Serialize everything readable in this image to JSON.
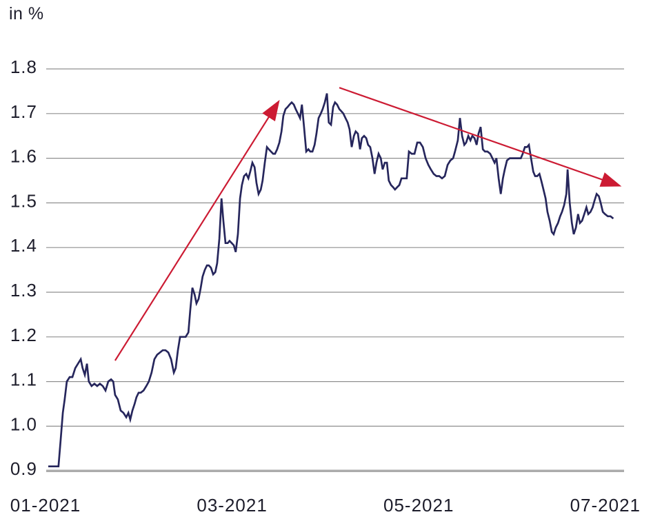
{
  "page": {
    "background": "#ffffff"
  },
  "chart_data": {
    "type": "line",
    "title": "",
    "unit_label": "in %",
    "ylabel": "in %",
    "xlabel": "",
    "ylim": [
      0.9,
      1.8
    ],
    "grid": {
      "show": true,
      "color": "#8f8f8f",
      "baseline_color": "#ababab"
    },
    "legend": {
      "show": false
    },
    "y_ticks": [
      {
        "label": "1.8",
        "value": 1.8
      },
      {
        "label": "1.7",
        "value": 1.7
      },
      {
        "label": "1.6",
        "value": 1.6
      },
      {
        "label": "1.5",
        "value": 1.5
      },
      {
        "label": "1.4",
        "value": 1.4
      },
      {
        "label": "1.3",
        "value": 1.3
      },
      {
        "label": "1.2",
        "value": 1.2
      },
      {
        "label": "1.1",
        "value": 1.1
      },
      {
        "label": "1.0",
        "value": 1.0
      },
      {
        "label": "0.9",
        "value": 0.9
      }
    ],
    "x_ticks": [
      {
        "label": "01-2021",
        "month": 1
      },
      {
        "label": "03-2021",
        "month": 3
      },
      {
        "label": "05-2021",
        "month": 5
      },
      {
        "label": "07-2021",
        "month": 7
      }
    ],
    "x_unit": "day_of_year_2021",
    "series": [
      {
        "color": "#26265c",
        "points": [
          [
            1.9,
            0.91
          ],
          [
            2.8,
            0.91
          ],
          [
            3.7,
            0.91
          ],
          [
            4.6,
            0.91
          ],
          [
            5.2,
            0.91
          ],
          [
            5.9,
            0.97
          ],
          [
            6.6,
            1.03
          ],
          [
            7.2,
            1.06
          ],
          [
            7.9,
            1.1
          ],
          [
            8.8,
            1.11
          ],
          [
            9.7,
            1.11
          ],
          [
            10.6,
            1.13
          ],
          [
            11.5,
            1.14
          ],
          [
            12.4,
            1.15
          ],
          [
            13,
            1.13
          ],
          [
            13.7,
            1.115
          ],
          [
            14.4,
            1.14
          ],
          [
            15,
            1.1
          ],
          [
            15.9,
            1.09
          ],
          [
            16.8,
            1.095
          ],
          [
            17.7,
            1.09
          ],
          [
            18.6,
            1.095
          ],
          [
            19.5,
            1.09
          ],
          [
            20.4,
            1.08
          ],
          [
            21.3,
            1.1
          ],
          [
            22.2,
            1.105
          ],
          [
            22.9,
            1.1
          ],
          [
            23.5,
            1.07
          ],
          [
            24.4,
            1.06
          ],
          [
            25.3,
            1.035
          ],
          [
            26.2,
            1.03
          ],
          [
            27.1,
            1.02
          ],
          [
            27.8,
            1.03
          ],
          [
            28.4,
            1.015
          ],
          [
            29.1,
            1.035
          ],
          [
            29.8,
            1.05
          ],
          [
            30.4,
            1.065
          ],
          [
            31.1,
            1.075
          ],
          [
            31.8,
            1.075
          ],
          [
            32.7,
            1.08
          ],
          [
            33.6,
            1.09
          ],
          [
            34.4,
            1.1
          ],
          [
            35.3,
            1.12
          ],
          [
            36.2,
            1.15
          ],
          [
            37.1,
            1.16
          ],
          [
            38,
            1.165
          ],
          [
            38.9,
            1.17
          ],
          [
            39.8,
            1.17
          ],
          [
            40.7,
            1.165
          ],
          [
            41.6,
            1.15
          ],
          [
            42.5,
            1.12
          ],
          [
            43.1,
            1.13
          ],
          [
            43.8,
            1.17
          ],
          [
            44.5,
            1.2
          ],
          [
            45.4,
            1.2
          ],
          [
            46.3,
            1.2
          ],
          [
            47.2,
            1.21
          ],
          [
            47.8,
            1.26
          ],
          [
            48.5,
            1.31
          ],
          [
            49.2,
            1.295
          ],
          [
            49.8,
            1.275
          ],
          [
            50.5,
            1.285
          ],
          [
            51.2,
            1.31
          ],
          [
            51.8,
            1.335
          ],
          [
            52.5,
            1.35
          ],
          [
            53.2,
            1.36
          ],
          [
            53.8,
            1.36
          ],
          [
            54.5,
            1.355
          ],
          [
            55.2,
            1.34
          ],
          [
            55.9,
            1.345
          ],
          [
            56.5,
            1.365
          ],
          [
            57.2,
            1.42
          ],
          [
            57.9,
            1.51
          ],
          [
            58.5,
            1.46
          ],
          [
            59.2,
            1.41
          ],
          [
            59.9,
            1.41
          ],
          [
            60.5,
            1.415
          ],
          [
            61.2,
            1.41
          ],
          [
            61.9,
            1.405
          ],
          [
            62.5,
            1.39
          ],
          [
            63.2,
            1.43
          ],
          [
            63.9,
            1.51
          ],
          [
            64.5,
            1.54
          ],
          [
            65.2,
            1.56
          ],
          [
            65.9,
            1.565
          ],
          [
            66.6,
            1.555
          ],
          [
            67.2,
            1.57
          ],
          [
            67.9,
            1.59
          ],
          [
            68.6,
            1.58
          ],
          [
            69.2,
            1.545
          ],
          [
            69.9,
            1.52
          ],
          [
            70.6,
            1.53
          ],
          [
            71.2,
            1.55
          ],
          [
            71.9,
            1.59
          ],
          [
            72.6,
            1.625
          ],
          [
            73.2,
            1.62
          ],
          [
            73.9,
            1.615
          ],
          [
            74.6,
            1.61
          ],
          [
            75.2,
            1.61
          ],
          [
            75.9,
            1.62
          ],
          [
            76.6,
            1.635
          ],
          [
            77.3,
            1.66
          ],
          [
            77.9,
            1.695
          ],
          [
            78.6,
            1.71
          ],
          [
            79.3,
            1.715
          ],
          [
            79.9,
            1.72
          ],
          [
            80.6,
            1.725
          ],
          [
            81.3,
            1.72
          ],
          [
            81.9,
            1.71
          ],
          [
            82.6,
            1.7
          ],
          [
            83.3,
            1.69
          ],
          [
            83.9,
            1.72
          ],
          [
            84.6,
            1.67
          ],
          [
            85.3,
            1.615
          ],
          [
            86,
            1.62
          ],
          [
            86.6,
            1.615
          ],
          [
            87.3,
            1.615
          ],
          [
            88,
            1.63
          ],
          [
            88.6,
            1.655
          ],
          [
            89.3,
            1.69
          ],
          [
            90,
            1.7
          ],
          [
            90.6,
            1.71
          ],
          [
            91.3,
            1.725
          ],
          [
            92,
            1.745
          ],
          [
            92.6,
            1.68
          ],
          [
            93.3,
            1.675
          ],
          [
            94,
            1.715
          ],
          [
            94.6,
            1.725
          ],
          [
            95.3,
            1.72
          ],
          [
            96,
            1.71
          ],
          [
            96.7,
            1.705
          ],
          [
            97.3,
            1.7
          ],
          [
            98,
            1.69
          ],
          [
            98.7,
            1.68
          ],
          [
            99.3,
            1.665
          ],
          [
            100,
            1.625
          ],
          [
            100.7,
            1.65
          ],
          [
            101.3,
            1.66
          ],
          [
            102,
            1.655
          ],
          [
            102.7,
            1.62
          ],
          [
            103.3,
            1.645
          ],
          [
            104,
            1.65
          ],
          [
            104.7,
            1.645
          ],
          [
            105.3,
            1.63
          ],
          [
            106,
            1.625
          ],
          [
            106.7,
            1.6
          ],
          [
            107.4,
            1.565
          ],
          [
            108,
            1.59
          ],
          [
            108.7,
            1.61
          ],
          [
            109.4,
            1.6
          ],
          [
            110,
            1.575
          ],
          [
            110.7,
            1.59
          ],
          [
            111.4,
            1.59
          ],
          [
            112,
            1.55
          ],
          [
            112.7,
            1.54
          ],
          [
            113.4,
            1.535
          ],
          [
            114,
            1.53
          ],
          [
            114.7,
            1.535
          ],
          [
            115.4,
            1.54
          ],
          [
            116.1,
            1.555
          ],
          [
            116.9,
            1.555
          ],
          [
            117.8,
            1.555
          ],
          [
            118.5,
            1.615
          ],
          [
            119.4,
            1.61
          ],
          [
            120.3,
            1.61
          ],
          [
            121.2,
            1.635
          ],
          [
            122.1,
            1.635
          ],
          [
            123,
            1.625
          ],
          [
            123.9,
            1.6
          ],
          [
            124.8,
            1.585
          ],
          [
            125.6,
            1.575
          ],
          [
            126.5,
            1.565
          ],
          [
            127.4,
            1.56
          ],
          [
            128.3,
            1.56
          ],
          [
            129.2,
            1.555
          ],
          [
            130.1,
            1.56
          ],
          [
            131,
            1.585
          ],
          [
            131.9,
            1.595
          ],
          [
            132.8,
            1.6
          ],
          [
            133.4,
            1.615
          ],
          [
            134.3,
            1.64
          ],
          [
            135,
            1.69
          ],
          [
            135.7,
            1.65
          ],
          [
            136.4,
            1.63
          ],
          [
            137,
            1.635
          ],
          [
            137.7,
            1.65
          ],
          [
            138.4,
            1.64
          ],
          [
            139,
            1.65
          ],
          [
            139.7,
            1.645
          ],
          [
            140.4,
            1.63
          ],
          [
            141,
            1.655
          ],
          [
            141.7,
            1.67
          ],
          [
            142.4,
            1.62
          ],
          [
            143.1,
            1.615
          ],
          [
            143.9,
            1.615
          ],
          [
            144.8,
            1.61
          ],
          [
            145.5,
            1.6
          ],
          [
            146.2,
            1.59
          ],
          [
            146.8,
            1.6
          ],
          [
            147.5,
            1.555
          ],
          [
            148.2,
            1.52
          ],
          [
            148.9,
            1.555
          ],
          [
            149.5,
            1.575
          ],
          [
            150.2,
            1.595
          ],
          [
            151.1,
            1.6
          ],
          [
            152,
            1.6
          ],
          [
            152.9,
            1.6
          ],
          [
            153.8,
            1.6
          ],
          [
            154.7,
            1.6
          ],
          [
            155.3,
            1.61
          ],
          [
            156,
            1.625
          ],
          [
            156.7,
            1.625
          ],
          [
            157.3,
            1.63
          ],
          [
            158,
            1.6
          ],
          [
            158.7,
            1.57
          ],
          [
            159.3,
            1.56
          ],
          [
            160,
            1.56
          ],
          [
            160.7,
            1.565
          ],
          [
            161.3,
            1.55
          ],
          [
            162,
            1.53
          ],
          [
            162.7,
            1.51
          ],
          [
            163.3,
            1.48
          ],
          [
            164,
            1.46
          ],
          [
            164.7,
            1.435
          ],
          [
            165.3,
            1.43
          ],
          [
            166,
            1.445
          ],
          [
            166.7,
            1.455
          ],
          [
            167.4,
            1.47
          ],
          [
            168,
            1.48
          ],
          [
            168.7,
            1.495
          ],
          [
            169.4,
            1.52
          ],
          [
            169.8,
            1.575
          ],
          [
            170.5,
            1.5
          ],
          [
            171.2,
            1.455
          ],
          [
            171.8,
            1.43
          ],
          [
            172.5,
            1.445
          ],
          [
            173.2,
            1.475
          ],
          [
            173.8,
            1.455
          ],
          [
            174.5,
            1.46
          ],
          [
            175.2,
            1.475
          ],
          [
            175.9,
            1.49
          ],
          [
            176.5,
            1.475
          ],
          [
            177.2,
            1.48
          ],
          [
            177.9,
            1.49
          ],
          [
            178.5,
            1.505
          ],
          [
            179.2,
            1.52
          ],
          [
            179.9,
            1.515
          ],
          [
            180.5,
            1.5
          ],
          [
            181.2,
            1.48
          ],
          [
            181.9,
            1.475
          ],
          [
            182.8,
            1.47
          ],
          [
            183.7,
            1.47
          ],
          [
            184.6,
            1.465
          ]
        ]
      }
    ],
    "annotations": {
      "trend_arrows": [
        {
          "direction": "up",
          "color": "#cc1b33",
          "from": [
            23.5,
            1.147
          ],
          "to": [
            76,
            1.723
          ]
        },
        {
          "direction": "down",
          "color": "#cc1b33",
          "from": [
            96,
            1.758
          ],
          "to": [
            186,
            1.54
          ]
        }
      ]
    }
  }
}
